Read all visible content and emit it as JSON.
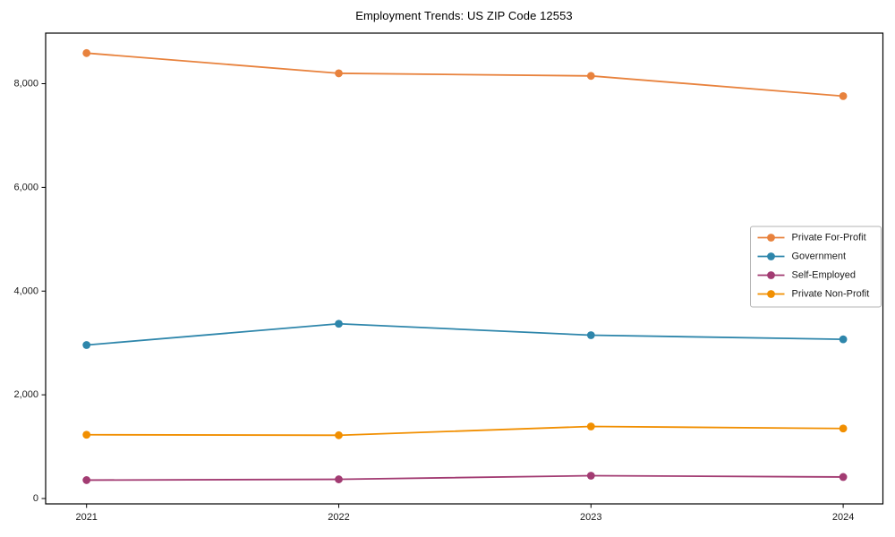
{
  "chart_data": {
    "type": "line",
    "title": "Employment Trends: US ZIP Code 12553",
    "xlabel": "",
    "ylabel": "",
    "categories": [
      "2021",
      "2022",
      "2023",
      "2024"
    ],
    "series": [
      {
        "name": "Private For-Profit",
        "color": "#e8823d",
        "values": [
          8590,
          8200,
          8150,
          7760
        ]
      },
      {
        "name": "Government",
        "color": "#2e86ab",
        "values": [
          2960,
          3370,
          3150,
          3070
        ]
      },
      {
        "name": "Self-Employed",
        "color": "#a23b72",
        "values": [
          355,
          370,
          440,
          415
        ]
      },
      {
        "name": "Private Non-Profit",
        "color": "#f18f01",
        "values": [
          1230,
          1220,
          1390,
          1350
        ]
      }
    ],
    "ylim": [
      0,
      8800
    ],
    "yticks": [
      0,
      2000,
      4000,
      6000,
      8000
    ],
    "ytick_labels": [
      "0",
      "2,000",
      "4,000",
      "6,000",
      "8,000"
    ],
    "grid": false,
    "legend_position": "center right",
    "marker": "circle",
    "axis_color": "#000000",
    "legend_border_color": "#b3b3b3",
    "tick_label_color": "#1a1a1a"
  }
}
